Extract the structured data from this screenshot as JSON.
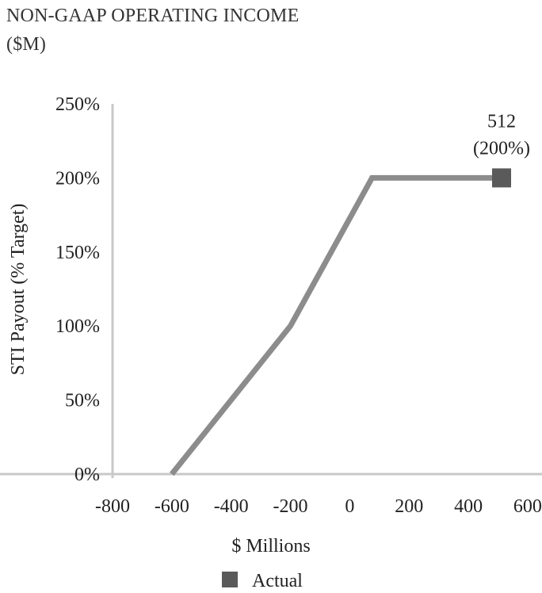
{
  "title": {
    "line1": "NON-GAAP OPERATING INCOME",
    "line2": "($M)"
  },
  "chart_data": {
    "type": "line",
    "xlabel": "$ Millions",
    "ylabel": "STI Payout (% Target)",
    "xlim": [
      -800,
      600
    ],
    "ylim": [
      0,
      250
    ],
    "x_ticks": [
      -800,
      -600,
      -400,
      -200,
      0,
      200,
      400,
      600
    ],
    "x_tick_labels": [
      "-800",
      "-600",
      "-400",
      "-200",
      "0",
      "200",
      "400",
      "600"
    ],
    "y_ticks": [
      0,
      50,
      100,
      150,
      200,
      250
    ],
    "y_tick_labels": [
      "0%",
      "50%",
      "100%",
      "150%",
      "200%",
      "250%"
    ],
    "grid": false,
    "legend_position": "bottom",
    "series": [
      {
        "type": "line",
        "color": "#8c8c8c",
        "points": [
          {
            "x": -600,
            "y": 0
          },
          {
            "x": -200,
            "y": 100
          },
          {
            "x": 75,
            "y": 200
          },
          {
            "x": 512,
            "y": 200
          }
        ]
      },
      {
        "name": "Actual",
        "type": "marker",
        "color": "#5a5a5a",
        "points": [
          {
            "x": 512,
            "y": 200
          }
        ]
      }
    ],
    "annotation": {
      "x": 512,
      "y": 200,
      "lines": [
        "512",
        "(200%)"
      ]
    },
    "axis_color": "#c8c8c8"
  }
}
